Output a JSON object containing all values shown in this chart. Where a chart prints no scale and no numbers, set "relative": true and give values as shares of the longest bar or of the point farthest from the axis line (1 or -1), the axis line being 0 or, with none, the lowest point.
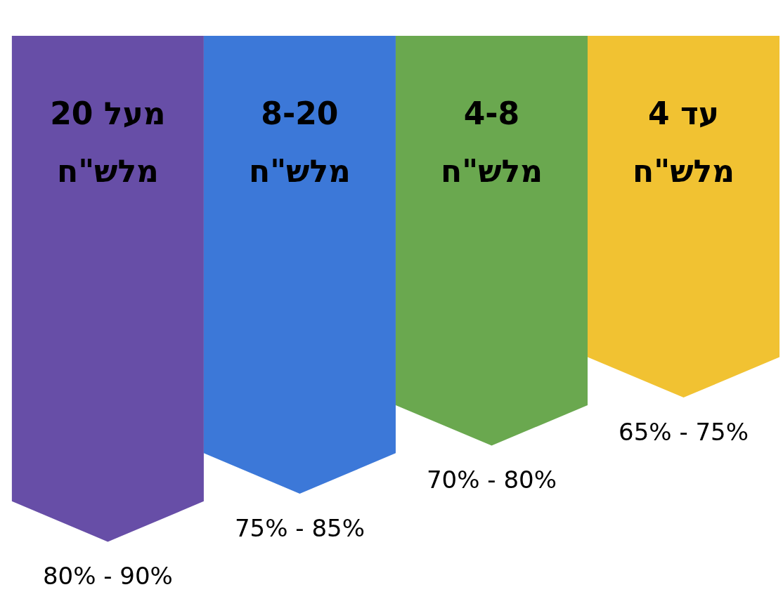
{
  "chart_data": {
    "type": "bar",
    "relative": true,
    "categories": [
      "מעל 20\nמלש\"ח",
      "8-20\nמלש\"ח",
      "4-8\nמלש\"ח",
      "עד 4\nמלש\"ח"
    ],
    "values": [
      -1,
      -0.905,
      -0.81,
      -0.715
    ],
    "colors": [
      "#674ea7",
      "#3c78d8",
      "#6aa84f",
      "#f1c232"
    ],
    "annotations": [
      "80% - 90%",
      "75% - 85%",
      "70% - 80%",
      "65% - 75%"
    ]
  }
}
